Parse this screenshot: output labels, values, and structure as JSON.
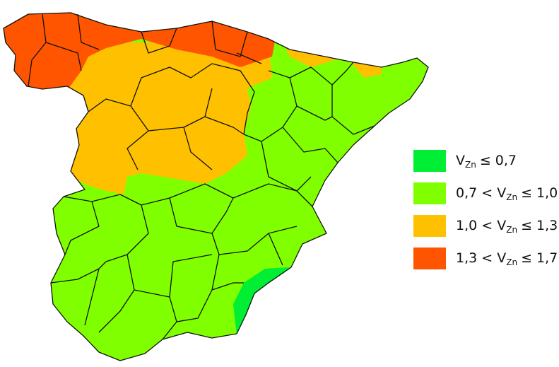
{
  "legend": [
    {
      "color": "#00ee33",
      "variable": "V",
      "subscript": "Zn",
      "upper": "≤ 0,7"
    },
    {
      "color": "#7fff00",
      "lower": "0,7 <",
      "variable": "V",
      "subscript": "Zn",
      "upper": "≤ 1,0"
    },
    {
      "color": "#ffc000",
      "lower": "1,0 <",
      "variable": "V",
      "subscript": "Zn",
      "upper": "≤ 1,3"
    },
    {
      "color": "#ff5500",
      "lower": "1,3 <",
      "variable": "V",
      "subscript": "Zn",
      "upper": "≤ 1,7"
    }
  ]
}
